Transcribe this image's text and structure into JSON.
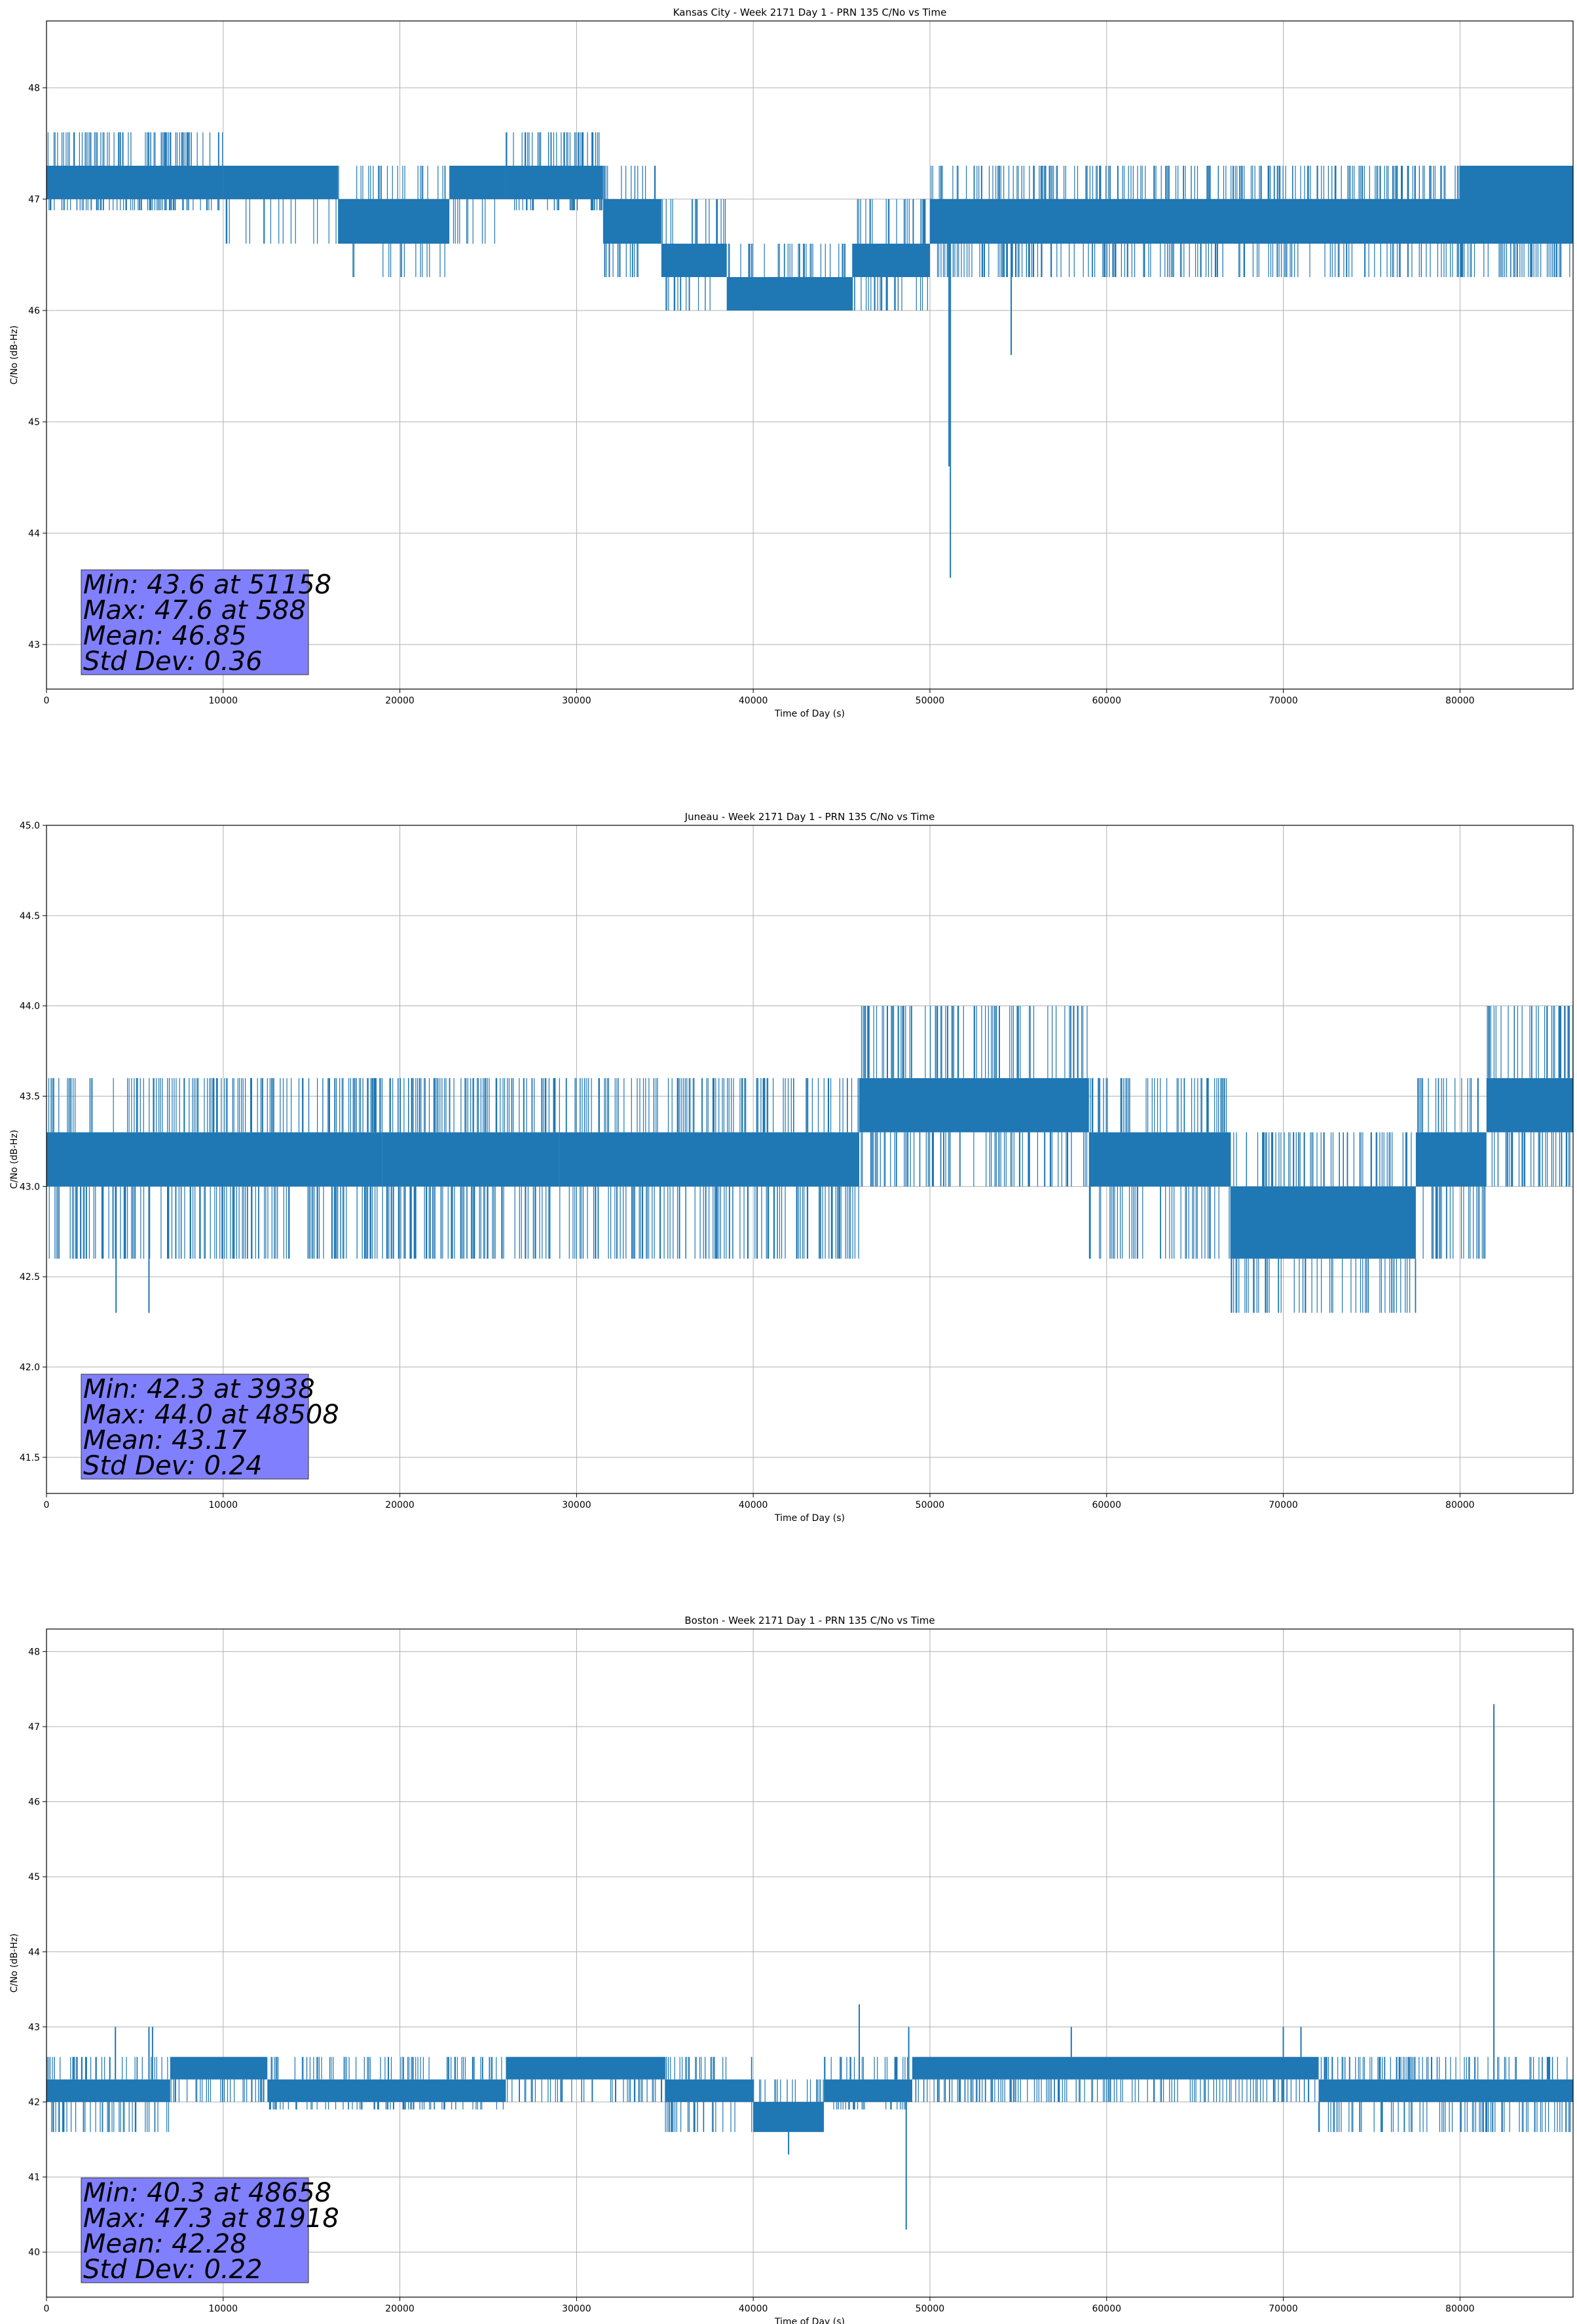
{
  "chart_data": [
    {
      "type": "line",
      "title": "Kansas City - Week 2171 Day 1 - PRN 135 C/No vs Time",
      "xlabel": "Time of Day (s)",
      "ylabel": "C/No (dB-Hz)",
      "xlim": [
        0,
        86400
      ],
      "ylim": [
        42.6,
        48.6
      ],
      "xticks": [
        0,
        10000,
        20000,
        30000,
        40000,
        50000,
        60000,
        70000,
        80000
      ],
      "yticks": [
        43,
        44,
        45,
        46,
        47,
        48
      ],
      "ytick_labels": [
        "43",
        "44",
        "45",
        "46",
        "47",
        "48"
      ],
      "grid": true,
      "line_color": "#1f77b4",
      "series": [
        {
          "segments": [
            {
              "x0": 0,
              "x1": 10000,
              "lo": 47.0,
              "hi": 47.3,
              "spike_hi": 47.6,
              "spike_lo": 46.9,
              "density": 0.6
            },
            {
              "x0": 10000,
              "x1": 16500,
              "lo": 47.0,
              "hi": 47.3,
              "spike_hi": 47.3,
              "spike_lo": 46.6,
              "density": 0.25
            },
            {
              "x0": 16500,
              "x1": 22800,
              "lo": 46.6,
              "hi": 47.0,
              "spike_hi": 47.3,
              "spike_lo": 46.3,
              "density": 0.25
            },
            {
              "x0": 22800,
              "x1": 26000,
              "lo": 47.0,
              "hi": 47.3,
              "spike_hi": 47.3,
              "spike_lo": 46.6,
              "density": 0.25
            },
            {
              "x0": 26000,
              "x1": 31500,
              "lo": 47.0,
              "hi": 47.3,
              "spike_hi": 47.6,
              "spike_lo": 46.9,
              "density": 0.55
            },
            {
              "x0": 31500,
              "x1": 34800,
              "lo": 46.6,
              "hi": 47.0,
              "spike_hi": 47.3,
              "spike_lo": 46.3,
              "density": 0.35
            },
            {
              "x0": 34800,
              "x1": 38500,
              "lo": 46.3,
              "hi": 46.6,
              "spike_hi": 47.0,
              "spike_lo": 46.0,
              "density": 0.35
            },
            {
              "x0": 38500,
              "x1": 45600,
              "lo": 46.0,
              "hi": 46.3,
              "spike_hi": 46.6,
              "spike_lo": 46.0,
              "density": 0.4
            },
            {
              "x0": 45600,
              "x1": 50000,
              "lo": 46.3,
              "hi": 46.6,
              "spike_hi": 47.0,
              "spike_lo": 46.0,
              "density": 0.45
            },
            {
              "x0": 50000,
              "x1": 86400,
              "lo": 46.6,
              "hi": 47.0,
              "spike_hi": 47.3,
              "spike_lo": 46.3,
              "density": 0.5
            },
            {
              "x0": 80000,
              "x1": 86400,
              "lo": 47.0,
              "hi": 47.3,
              "spike_hi": 47.3,
              "spike_lo": 47.0,
              "density": 0.6
            }
          ],
          "spikes": [
            {
              "x": 51158,
              "y": 43.6
            },
            {
              "x": 51080,
              "y": 44.6
            },
            {
              "x": 54600,
              "y": 45.6
            }
          ]
        }
      ],
      "annotation": [
        "Min: 43.6 at 51158",
        "Max: 47.6 at 588",
        "Mean: 46.85",
        "Std Dev: 0.36"
      ],
      "annotation_color": "#8080ff"
    },
    {
      "type": "line",
      "title": "Juneau - Week 2171 Day 1 - PRN 135 C/No vs Time",
      "xlabel": "Time of Day (s)",
      "ylabel": "C/No (dB-Hz)",
      "xlim": [
        0,
        86400
      ],
      "ylim": [
        41.3,
        45.0
      ],
      "xticks": [
        0,
        10000,
        20000,
        30000,
        40000,
        50000,
        60000,
        70000,
        80000
      ],
      "yticks": [
        41.5,
        42.0,
        42.5,
        43.0,
        43.5,
        44.0,
        44.5,
        45.0
      ],
      "ytick_labels": [
        "41.5",
        "42.0",
        "42.5",
        "43.0",
        "43.5",
        "44.0",
        "44.5",
        "45.0"
      ],
      "grid": true,
      "line_color": "#1f77b4",
      "series": [
        {
          "segments": [
            {
              "x0": 0,
              "x1": 19000,
              "lo": 43.0,
              "hi": 43.3,
              "spike_hi": 43.6,
              "spike_lo": 42.6,
              "density": 0.55
            },
            {
              "x0": 19000,
              "x1": 29000,
              "lo": 43.0,
              "hi": 43.3,
              "spike_hi": 43.6,
              "spike_lo": 42.6,
              "density": 0.65
            },
            {
              "x0": 29000,
              "x1": 46000,
              "lo": 43.0,
              "hi": 43.3,
              "spike_hi": 43.6,
              "spike_lo": 42.6,
              "density": 0.5
            },
            {
              "x0": 46000,
              "x1": 59000,
              "lo": 43.3,
              "hi": 43.6,
              "spike_hi": 44.0,
              "spike_lo": 43.0,
              "density": 0.45
            },
            {
              "x0": 59000,
              "x1": 67000,
              "lo": 43.0,
              "hi": 43.3,
              "spike_hi": 43.6,
              "spike_lo": 42.6,
              "density": 0.45
            },
            {
              "x0": 67000,
              "x1": 77500,
              "lo": 42.6,
              "hi": 43.0,
              "spike_hi": 43.3,
              "spike_lo": 42.3,
              "density": 0.45
            },
            {
              "x0": 77500,
              "x1": 81500,
              "lo": 43.0,
              "hi": 43.3,
              "spike_hi": 43.6,
              "spike_lo": 42.6,
              "density": 0.45
            },
            {
              "x0": 81500,
              "x1": 86400,
              "lo": 43.3,
              "hi": 43.6,
              "spike_hi": 44.0,
              "spike_lo": 43.0,
              "density": 0.55
            }
          ],
          "spikes": [
            {
              "x": 3938,
              "y": 42.3
            },
            {
              "x": 5800,
              "y": 42.3
            },
            {
              "x": 48508,
              "y": 44.0
            },
            {
              "x": 51000,
              "y": 44.0
            }
          ]
        }
      ],
      "annotation": [
        "Min: 42.3 at 3938",
        "Max: 44.0 at 48508",
        "Mean: 43.17",
        "Std Dev: 0.24"
      ],
      "annotation_color": "#8080ff"
    },
    {
      "type": "line",
      "title": "Boston - Week 2171 Day 1 - PRN 135 C/No vs Time",
      "xlabel": "Time of Day (s)",
      "ylabel": "C/No (dB-Hz)",
      "xlim": [
        0,
        86400
      ],
      "ylim": [
        39.4,
        48.3
      ],
      "xticks": [
        0,
        10000,
        20000,
        30000,
        40000,
        50000,
        60000,
        70000,
        80000
      ],
      "yticks": [
        40,
        41,
        42,
        43,
        44,
        45,
        46,
        47,
        48
      ],
      "ytick_labels": [
        "40",
        "41",
        "42",
        "43",
        "44",
        "45",
        "46",
        "47",
        "48"
      ],
      "grid": true,
      "line_color": "#1f77b4",
      "series": [
        {
          "segments": [
            {
              "x0": 0,
              "x1": 7000,
              "lo": 42.0,
              "hi": 42.3,
              "spike_hi": 42.6,
              "spike_lo": 41.6,
              "density": 0.45
            },
            {
              "x0": 7000,
              "x1": 12500,
              "lo": 42.3,
              "hi": 42.6,
              "spike_hi": 42.6,
              "spike_lo": 42.0,
              "density": 0.4
            },
            {
              "x0": 12500,
              "x1": 26000,
              "lo": 42.0,
              "hi": 42.3,
              "spike_hi": 42.6,
              "spike_lo": 41.9,
              "density": 0.4
            },
            {
              "x0": 26000,
              "x1": 35000,
              "lo": 42.3,
              "hi": 42.6,
              "spike_hi": 42.6,
              "spike_lo": 42.0,
              "density": 0.45
            },
            {
              "x0": 35000,
              "x1": 40000,
              "lo": 42.0,
              "hi": 42.3,
              "spike_hi": 42.6,
              "spike_lo": 41.6,
              "density": 0.4
            },
            {
              "x0": 40000,
              "x1": 44000,
              "lo": 41.6,
              "hi": 42.0,
              "spike_hi": 42.3,
              "spike_lo": 41.6,
              "density": 0.4
            },
            {
              "x0": 44000,
              "x1": 49000,
              "lo": 42.0,
              "hi": 42.3,
              "spike_hi": 42.6,
              "spike_lo": 41.9,
              "density": 0.4
            },
            {
              "x0": 49000,
              "x1": 72000,
              "lo": 42.3,
              "hi": 42.6,
              "spike_hi": 42.6,
              "spike_lo": 42.0,
              "density": 0.5
            },
            {
              "x0": 72000,
              "x1": 86400,
              "lo": 42.0,
              "hi": 42.3,
              "spike_hi": 42.6,
              "spike_lo": 41.6,
              "density": 0.45
            }
          ],
          "spikes": [
            {
              "x": 48658,
              "y": 40.3
            },
            {
              "x": 81918,
              "y": 47.3
            },
            {
              "x": 81850,
              "y": 41.6
            },
            {
              "x": 46000,
              "y": 43.3
            },
            {
              "x": 42000,
              "y": 41.3
            },
            {
              "x": 3900,
              "y": 43.0
            },
            {
              "x": 5800,
              "y": 43.0
            },
            {
              "x": 6000,
              "y": 43.0
            },
            {
              "x": 48800,
              "y": 43.0
            },
            {
              "x": 58000,
              "y": 43.0
            },
            {
              "x": 70000,
              "y": 43.0
            },
            {
              "x": 71000,
              "y": 43.0
            },
            {
              "x": 86000,
              "y": 41.6
            }
          ]
        }
      ],
      "annotation": [
        "Min: 40.3 at 48658",
        "Max: 47.3 at 81918",
        "Mean: 42.28",
        "Std Dev: 0.22"
      ],
      "annotation_color": "#8080ff"
    }
  ]
}
